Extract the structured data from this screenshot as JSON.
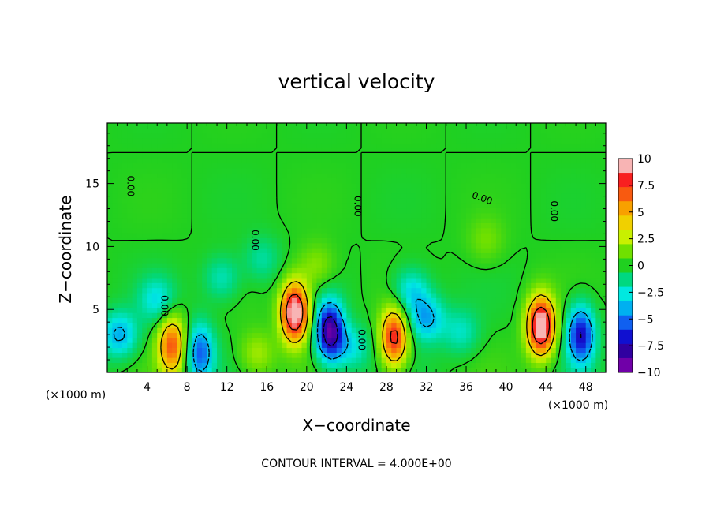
{
  "chart_data": {
    "type": "heatmap",
    "title": "vertical velocity",
    "xlabel": "X−coordinate",
    "ylabel": "Z−coordinate",
    "x_unit_label": "(×1000 m)",
    "xlim": [
      0,
      50
    ],
    "ylim": [
      0,
      19.8
    ],
    "x_ticks": [
      4,
      8,
      12,
      16,
      20,
      24,
      28,
      32,
      36,
      40,
      44,
      48
    ],
    "y_ticks": [
      5,
      10,
      15
    ],
    "contour_interval_text": "CONTOUR INTERVAL = 4.000E+00",
    "contour_label": "0.00",
    "colorbar": {
      "min": -10,
      "max": 10,
      "ticks": [
        10,
        7.5,
        5,
        2.5,
        0,
        -2.5,
        -5,
        -7.5,
        -10
      ],
      "tick_labels": [
        "10",
        "7.5",
        "5",
        "2.5",
        "0",
        "−2.5",
        "−5",
        "−7.5",
        "−10"
      ],
      "colors": [
        "#f8b4b4",
        "#f82020",
        "#f85a10",
        "#f8a000",
        "#f0d000",
        "#c8f000",
        "#70e000",
        "#20d020",
        "#00d880",
        "#00e8e0",
        "#00b0f0",
        "#1060f0",
        "#1010d0",
        "#3000a0",
        "#7000a8"
      ]
    },
    "features": [
      {
        "kind": "updraft",
        "x": 6.5,
        "z": 2.2,
        "peak": 7.5
      },
      {
        "kind": "downdraft",
        "x": 9.3,
        "z": 1.6,
        "peak": -6
      },
      {
        "kind": "updraft",
        "x": 18.8,
        "z": 4.8,
        "peak": 12
      },
      {
        "kind": "downdraft",
        "x": 22.3,
        "z": 3.3,
        "peak": -10
      },
      {
        "kind": "updraft",
        "x": 28.8,
        "z": 2.8,
        "peak": 9
      },
      {
        "kind": "downdraft",
        "x": 32.0,
        "z": 4.3,
        "peak": -4.5
      },
      {
        "kind": "updraft",
        "x": 43.5,
        "z": 3.7,
        "peak": 12
      },
      {
        "kind": "downdraft",
        "x": 47.5,
        "z": 3.0,
        "peak": -8
      },
      {
        "kind": "downdraft",
        "x": 1.2,
        "z": 3.0,
        "peak": -4.5
      },
      {
        "kind": "downdraft",
        "x": 5.0,
        "z": 5.8,
        "peak": -3
      },
      {
        "kind": "downdraft",
        "x": 11.5,
        "z": 7.5,
        "peak": -2.5
      },
      {
        "kind": "downdraft",
        "x": 15.5,
        "z": 9.0,
        "peak": -2
      },
      {
        "kind": "downdraft",
        "x": 24.5,
        "z": 2.0,
        "peak": -3
      },
      {
        "kind": "downdraft",
        "x": 30.5,
        "z": 6.5,
        "peak": -3.5
      },
      {
        "kind": "downdraft",
        "x": 35.5,
        "z": 3.2,
        "peak": -2.5
      },
      {
        "kind": "updraft",
        "x": 21.0,
        "z": 8.5,
        "peak": 2
      },
      {
        "kind": "updraft",
        "x": 38.0,
        "z": 10.5,
        "peak": 1.5
      },
      {
        "kind": "updraft",
        "x": 15.0,
        "z": 1.5,
        "peak": 2.5
      }
    ]
  }
}
